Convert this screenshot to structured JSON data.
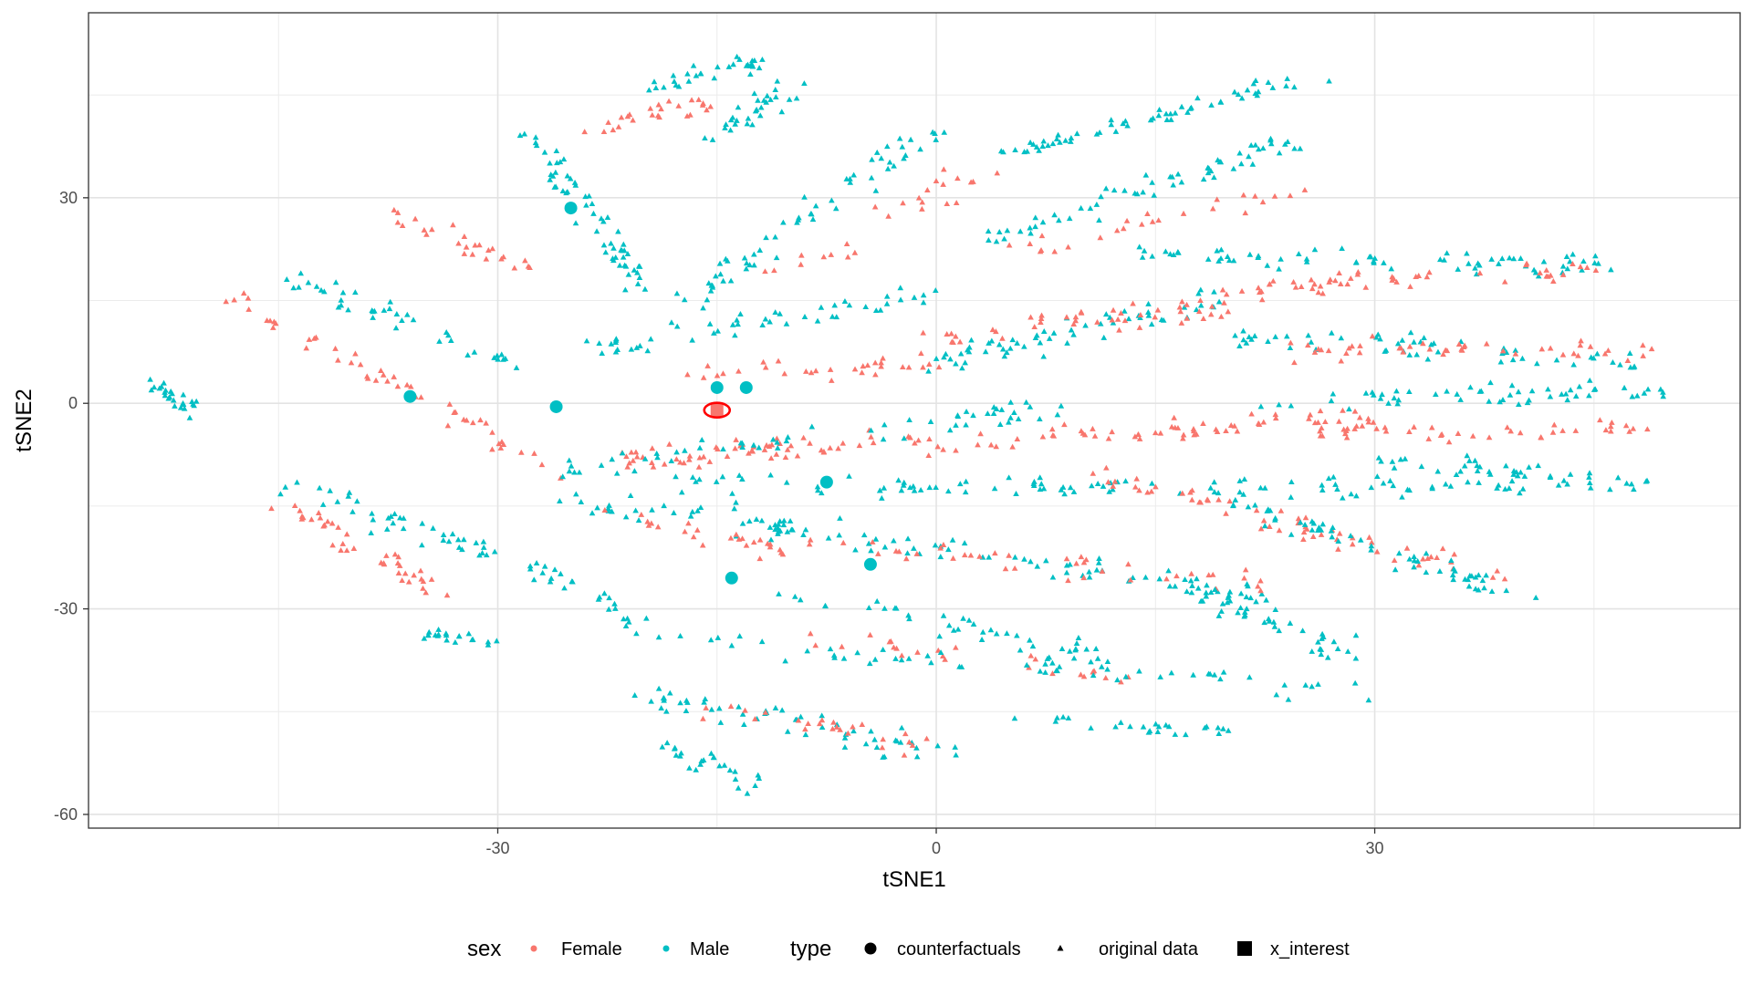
{
  "chart_data": {
    "type": "scatter",
    "xlabel": "tSNE1",
    "ylabel": "tSNE2",
    "xlim": [
      -58,
      55
    ],
    "ylim": [
      -62,
      57
    ],
    "x_ticks": [
      -30,
      0,
      30
    ],
    "y_ticks": [
      -60,
      -30,
      0,
      30
    ],
    "x_tick_labels": [
      "-30",
      "0",
      "30"
    ],
    "y_tick_labels": [
      "-60",
      "-30",
      "0",
      "30"
    ],
    "grid": true,
    "legend_position": "bottom",
    "colors": {
      "Female": "#F8766D",
      "Male": "#00BFC4",
      "highlight": "#FF0000"
    },
    "legend": {
      "sex": {
        "title": "sex",
        "entries": [
          "Female",
          "Male"
        ]
      },
      "type": {
        "title": "type",
        "entries": [
          "counterfactuals",
          "original data",
          "x_interest"
        ]
      }
    },
    "clusters": [
      {
        "name": "Female",
        "type": "original data",
        "x0": -48,
        "y0": 15,
        "x1": -26,
        "y1": -10,
        "n": 50,
        "spread": 1.2
      },
      {
        "name": "Male",
        "type": "original data",
        "x0": -44,
        "y0": 18,
        "x1": -28,
        "y1": 5,
        "n": 40,
        "spread": 1.2
      },
      {
        "name": "Male",
        "type": "original data",
        "x0": -53,
        "y0": 3,
        "x1": -51,
        "y1": -1,
        "n": 25,
        "spread": 0.9
      },
      {
        "name": "Female",
        "type": "original data",
        "x0": -38,
        "y0": 28,
        "x1": -28,
        "y1": 20,
        "n": 25,
        "spread": 1.2
      },
      {
        "name": "Male",
        "type": "original data",
        "x0": -44,
        "y0": -12,
        "x1": -30,
        "y1": -22,
        "n": 40,
        "spread": 1.5
      },
      {
        "name": "Female",
        "type": "original data",
        "x0": -44,
        "y0": -15,
        "x1": -34,
        "y1": -28,
        "n": 40,
        "spread": 1.3
      },
      {
        "name": "Male",
        "type": "original data",
        "x0": -36,
        "y0": -33,
        "x1": -30,
        "y1": -35,
        "n": 20,
        "spread": 0.8
      },
      {
        "name": "Male",
        "type": "original data",
        "x0": -28,
        "y0": -23,
        "x1": -20,
        "y1": -33,
        "n": 25,
        "spread": 1.3
      },
      {
        "name": "Male",
        "type": "original data",
        "x0": -28,
        "y0": 40,
        "x1": -20,
        "y1": 17,
        "n": 60,
        "spread": 1.2
      },
      {
        "name": "Female",
        "type": "original data",
        "x0": -24,
        "y0": 40,
        "x1": -16,
        "y1": 44,
        "n": 25,
        "spread": 1.2
      },
      {
        "name": "Male",
        "type": "original data",
        "x0": -20,
        "y0": 46,
        "x1": -12,
        "y1": 50,
        "n": 30,
        "spread": 1.2
      },
      {
        "name": "Male",
        "type": "original data",
        "x0": -16,
        "y0": 38,
        "x1": -10,
        "y1": 46,
        "n": 30,
        "spread": 1.2
      },
      {
        "name": "Male",
        "type": "original data",
        "x0": -18,
        "y0": 14,
        "x1": 0,
        "y1": 40,
        "n": 60,
        "spread": 1.5
      },
      {
        "name": "Female",
        "type": "original data",
        "x0": -12,
        "y0": 18,
        "x1": 4,
        "y1": 34,
        "n": 25,
        "spread": 1.5
      },
      {
        "name": "Male",
        "type": "original data",
        "x0": 4,
        "y0": 36,
        "x1": 26,
        "y1": 48,
        "n": 60,
        "spread": 1.2
      },
      {
        "name": "Male",
        "type": "original data",
        "x0": 4,
        "y0": 24,
        "x1": 24,
        "y1": 38,
        "n": 60,
        "spread": 1.3
      },
      {
        "name": "Female",
        "type": "original data",
        "x0": 6,
        "y0": 22,
        "x1": 26,
        "y1": 32,
        "n": 25,
        "spread": 1.3
      },
      {
        "name": "Male",
        "type": "original data",
        "x0": -24,
        "y0": 8,
        "x1": 0,
        "y1": 16,
        "n": 50,
        "spread": 1.5
      },
      {
        "name": "Female",
        "type": "original data",
        "x0": -18,
        "y0": 4,
        "x1": 0,
        "y1": 6,
        "n": 30,
        "spread": 1.3
      },
      {
        "name": "Male",
        "type": "original data",
        "x0": 0,
        "y0": 6,
        "x1": 20,
        "y1": 16,
        "n": 60,
        "spread": 1.6
      },
      {
        "name": "Female",
        "type": "original data",
        "x0": 0,
        "y0": 10,
        "x1": 20,
        "y1": 14,
        "n": 45,
        "spread": 1.6
      },
      {
        "name": "Male",
        "type": "original data",
        "x0": 14,
        "y0": 22,
        "x1": 46,
        "y1": 20,
        "n": 70,
        "spread": 1.4
      },
      {
        "name": "Female",
        "type": "original data",
        "x0": 16,
        "y0": 16,
        "x1": 46,
        "y1": 20,
        "n": 55,
        "spread": 1.3
      },
      {
        "name": "Male",
        "type": "original data",
        "x0": 20,
        "y0": 10,
        "x1": 48,
        "y1": 6,
        "n": 55,
        "spread": 1.5
      },
      {
        "name": "Female",
        "type": "original data",
        "x0": 22,
        "y0": 8,
        "x1": 50,
        "y1": 8,
        "n": 45,
        "spread": 1.3
      },
      {
        "name": "Male",
        "type": "original data",
        "x0": 22,
        "y0": 0,
        "x1": 50,
        "y1": 2,
        "n": 55,
        "spread": 1.5
      },
      {
        "name": "Female",
        "type": "original data",
        "x0": 26,
        "y0": -4,
        "x1": 48,
        "y1": -4,
        "n": 40,
        "spread": 1.3
      },
      {
        "name": "Male",
        "type": "original data",
        "x0": 30,
        "y0": -8,
        "x1": 48,
        "y1": -12,
        "n": 45,
        "spread": 1.4
      },
      {
        "name": "Female",
        "type": "original data",
        "x0": -22,
        "y0": -8,
        "x1": 30,
        "y1": -2,
        "n": 130,
        "spread": 1.5
      },
      {
        "name": "Male",
        "type": "original data",
        "x0": -26,
        "y0": -10,
        "x1": 10,
        "y1": 0,
        "n": 60,
        "spread": 1.5
      },
      {
        "name": "Male",
        "type": "original data",
        "x0": -16,
        "y0": -12,
        "x1": 40,
        "y1": -12,
        "n": 100,
        "spread": 1.6
      },
      {
        "name": "Female",
        "type": "original data",
        "x0": 10,
        "y0": -10,
        "x1": 40,
        "y1": -26,
        "n": 60,
        "spread": 1.3
      },
      {
        "name": "Male",
        "type": "original data",
        "x0": 20,
        "y0": -14,
        "x1": 40,
        "y1": -28,
        "n": 60,
        "spread": 1.4
      },
      {
        "name": "Male",
        "type": "original data",
        "x0": -12,
        "y0": -18,
        "x1": 24,
        "y1": -28,
        "n": 70,
        "spread": 1.6
      },
      {
        "name": "Female",
        "type": "original data",
        "x0": -10,
        "y0": -20,
        "x1": 22,
        "y1": -26,
        "n": 40,
        "spread": 1.5
      },
      {
        "name": "Male",
        "type": "original data",
        "x0": 16,
        "y0": -26,
        "x1": 28,
        "y1": -36,
        "n": 45,
        "spread": 1.4
      },
      {
        "name": "Male",
        "type": "original data",
        "x0": -26,
        "y0": -14,
        "x1": -8,
        "y1": -18,
        "n": 35,
        "spread": 1.4
      },
      {
        "name": "Female",
        "type": "original data",
        "x0": -22,
        "y0": -16,
        "x1": -10,
        "y1": -22,
        "n": 25,
        "spread": 1.3
      },
      {
        "name": "Male",
        "type": "original data",
        "x0": -10,
        "y0": -28,
        "x1": 14,
        "y1": -38,
        "n": 40,
        "spread": 1.5
      },
      {
        "name": "Female",
        "type": "original data",
        "x0": -8,
        "y0": -34,
        "x1": 12,
        "y1": -40,
        "n": 25,
        "spread": 1.4
      },
      {
        "name": "Male",
        "type": "original data",
        "x0": -20,
        "y0": -34,
        "x1": 30,
        "y1": -42,
        "n": 60,
        "spread": 1.4
      },
      {
        "name": "Male",
        "type": "original data",
        "x0": -20,
        "y0": -42,
        "x1": 2,
        "y1": -52,
        "n": 55,
        "spread": 1.6
      },
      {
        "name": "Female",
        "type": "original data",
        "x0": -16,
        "y0": -44,
        "x1": 0,
        "y1": -50,
        "n": 25,
        "spread": 1.5
      },
      {
        "name": "Male",
        "type": "original data",
        "x0": -18,
        "y0": -50,
        "x1": -12,
        "y1": -56,
        "n": 25,
        "spread": 1.2
      },
      {
        "name": "Male",
        "type": "original data",
        "x0": 6,
        "y0": -46,
        "x1": 20,
        "y1": -48,
        "n": 25,
        "spread": 1.1
      }
    ],
    "counterfactuals": [
      {
        "x": -36,
        "y": 1,
        "sex": "Male"
      },
      {
        "x": -26,
        "y": -0.5,
        "sex": "Male"
      },
      {
        "x": -25,
        "y": 28.5,
        "sex": "Male"
      },
      {
        "x": -15,
        "y": 2.3,
        "sex": "Male"
      },
      {
        "x": -13,
        "y": 2.3,
        "sex": "Male"
      },
      {
        "x": -7.5,
        "y": -11.5,
        "sex": "Male"
      },
      {
        "x": -4.5,
        "y": -23.5,
        "sex": "Male"
      },
      {
        "x": -14,
        "y": -25.5,
        "sex": "Male"
      }
    ],
    "x_interest": {
      "x": -15,
      "y": -1,
      "sex": "Female"
    }
  }
}
